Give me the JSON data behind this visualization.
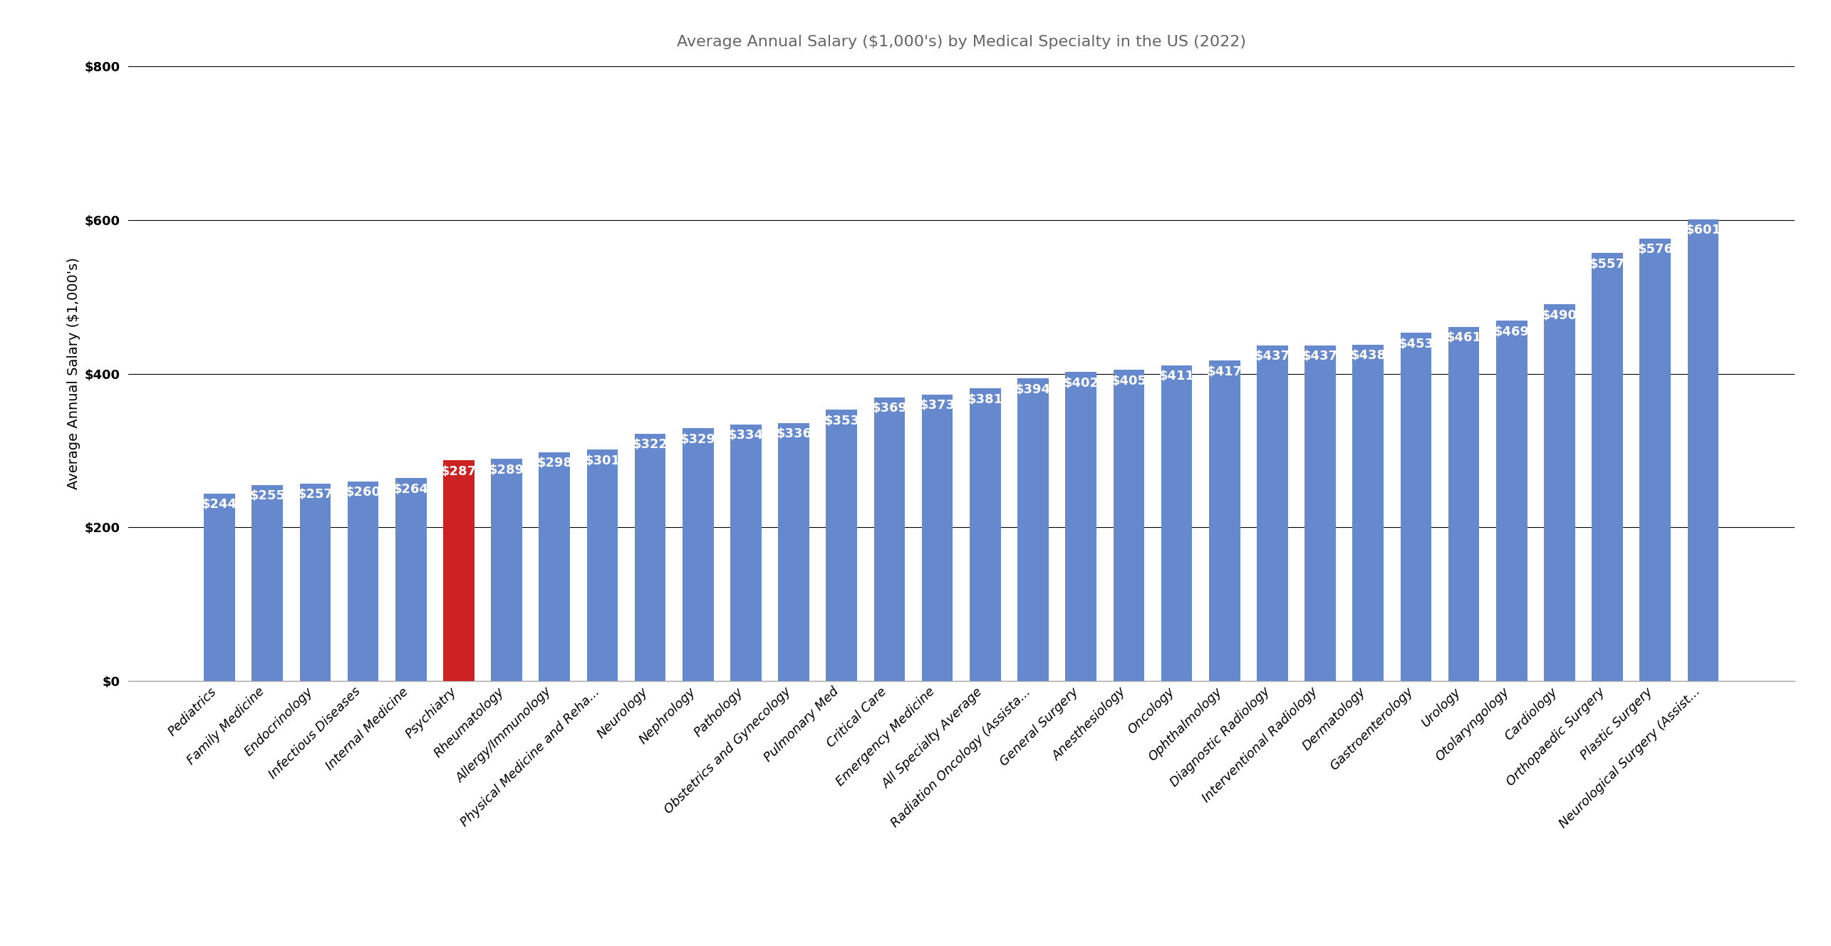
{
  "title": "Average Annual Salary ($1,000's) by Medical Specialty in the US (2022)",
  "ylabel": "Average Annual Salary ($1,000's)",
  "categories": [
    "Pediatrics",
    "Family Medicine",
    "Endocrinology",
    "Infectious Diseases",
    "Internal Medicine",
    "Psychiatry",
    "Rheumatology",
    "Allergy/Immunology",
    "Physical Medicine and Reha...",
    "Neurology",
    "Nephrology",
    "Pathology",
    "Obstetrics and Gynecology",
    "Pulmonary Med",
    "Critical Care",
    "Emergency Medicine",
    "All Specialty Average",
    "Radiation Oncology (Assista...",
    "General Surgery",
    "Anesthesiology",
    "Oncology",
    "Ophthalmology",
    "Diagnostic Radiology",
    "Interventional Radiology",
    "Dermatology",
    "Gastroenterology",
    "Urology",
    "Otolaryngology",
    "Cardiology",
    "Orthopaedic Surgery",
    "Plastic Surgery",
    "Neurological Surgery (Assist..."
  ],
  "values": [
    244,
    255,
    257,
    260,
    264,
    287,
    289,
    298,
    301,
    322,
    329,
    334,
    336,
    353,
    369,
    373,
    381,
    394,
    402,
    405,
    411,
    417,
    437,
    437,
    438,
    453,
    461,
    469,
    490,
    557,
    576,
    601
  ],
  "bar_colors": [
    "#6688cc",
    "#6688cc",
    "#6688cc",
    "#6688cc",
    "#6688cc",
    "#cc2222",
    "#6688cc",
    "#6688cc",
    "#6688cc",
    "#6688cc",
    "#6688cc",
    "#6688cc",
    "#6688cc",
    "#6688cc",
    "#6688cc",
    "#6688cc",
    "#6688cc",
    "#6688cc",
    "#6688cc",
    "#6688cc",
    "#6688cc",
    "#6688cc",
    "#6688cc",
    "#6688cc",
    "#6688cc",
    "#6688cc",
    "#6688cc",
    "#6688cc",
    "#6688cc",
    "#6688cc",
    "#6688cc",
    "#6688cc"
  ],
  "ylim": [
    0,
    800
  ],
  "yticks": [
    0,
    200,
    400,
    600,
    800
  ],
  "ytick_labels": [
    "$0",
    "$200",
    "$400",
    "$600",
    "$800"
  ],
  "background_color": "#ffffff",
  "title_fontsize": 16,
  "ylabel_fontsize": 14,
  "tick_fontsize": 13,
  "label_fontsize": 13,
  "bar_width": 0.65
}
